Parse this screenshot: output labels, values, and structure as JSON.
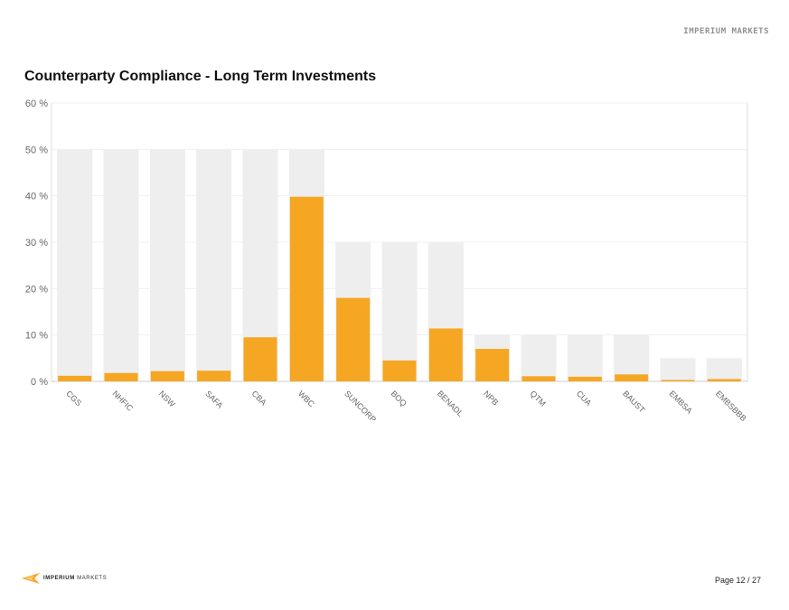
{
  "header": {
    "corner_mark": "IMPERIUM MARKETS"
  },
  "chart_data": {
    "type": "bar",
    "title": "Counterparty Compliance - Long Term Investments",
    "xlabel": "",
    "ylabel": "",
    "ylim": [
      0,
      60
    ],
    "ytick_labels": [
      "0 %",
      "10 %",
      "20 %",
      "30 %",
      "40 %",
      "50 %",
      "60 %"
    ],
    "yticks": [
      0,
      10,
      20,
      30,
      40,
      50,
      60
    ],
    "grid": true,
    "categories": [
      "CGS",
      "NHFIC",
      "NSW",
      "SAFA",
      "CBA",
      "WBC",
      "SUNCORP",
      "BOQ",
      "BENADL",
      "NPB",
      "QTM",
      "CUA",
      "BAUST",
      "EMBSA",
      "EMBSBBB"
    ],
    "series": [
      {
        "values": [
          50,
          50,
          50,
          50,
          50,
          50,
          30,
          30,
          30,
          10,
          10,
          10,
          10,
          5,
          5
        ],
        "color": "#eeeeee"
      },
      {
        "values": [
          1.2,
          1.8,
          2.2,
          2.3,
          9.5,
          39.8,
          18.0,
          4.5,
          11.4,
          7.0,
          1.1,
          1.0,
          1.5,
          0.3,
          0.5
        ],
        "color": "#f5a623"
      }
    ]
  },
  "footer": {
    "logo_bold": "IMPERIUM",
    "logo_light": "MARKETS",
    "page": "Page 12 / 27"
  }
}
